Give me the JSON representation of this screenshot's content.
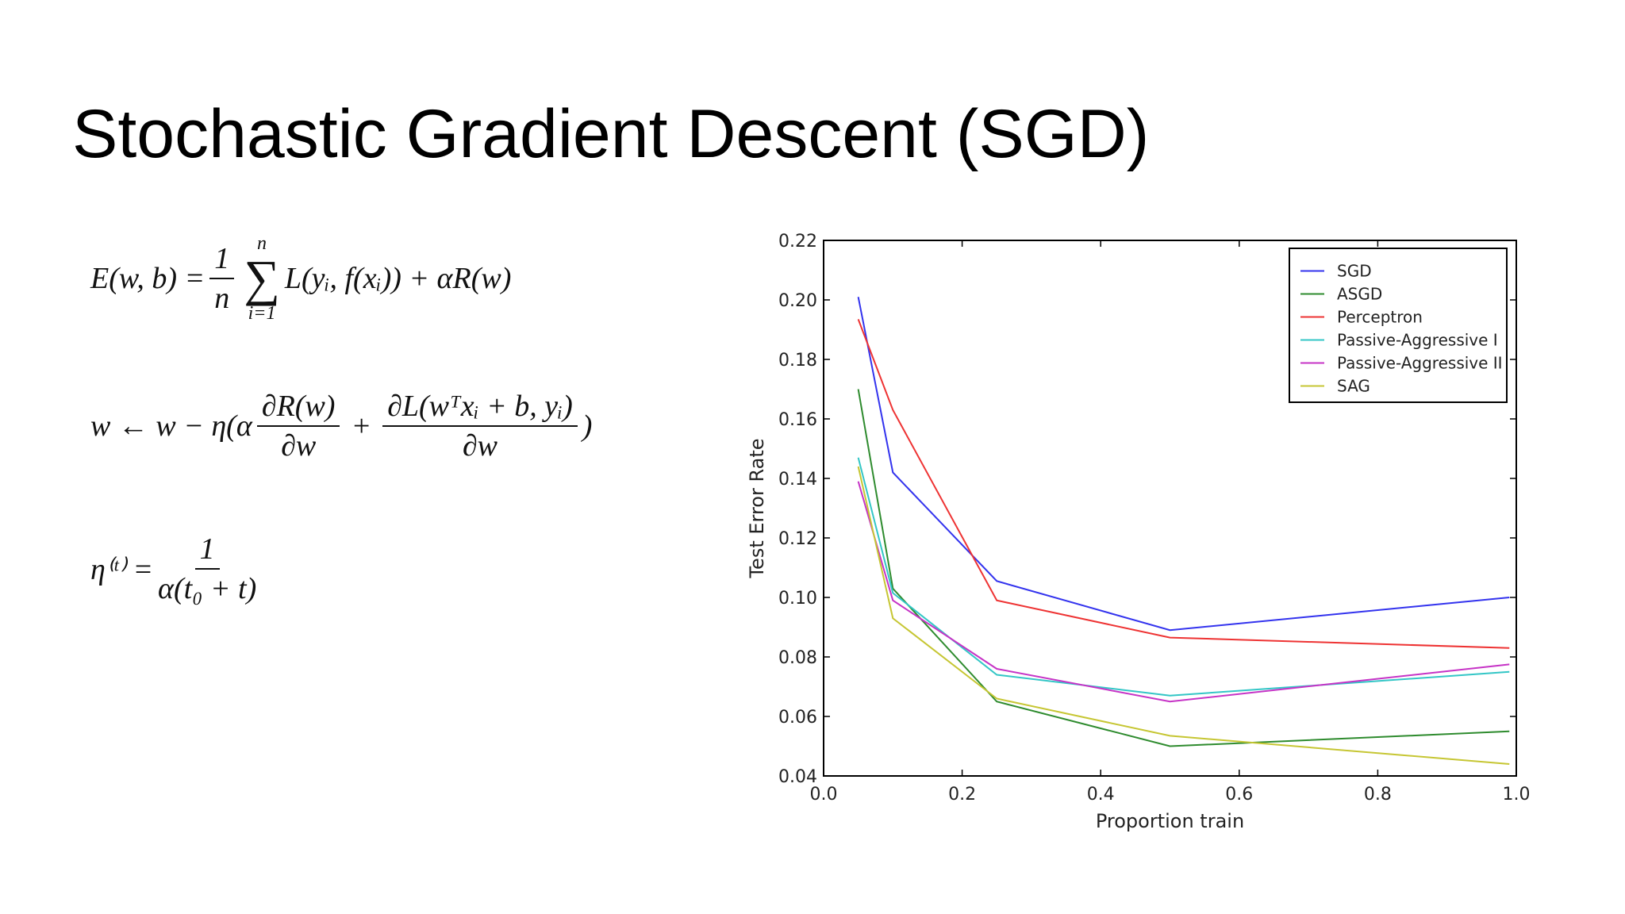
{
  "header": {
    "title": "Stochastic Gradient Descent (SGD)"
  },
  "equations": [
    {
      "lhs": "E(w, b) =",
      "frac_num": "1",
      "frac_den": "n",
      "sum_upper": "n",
      "sum_symbol": "∑",
      "sum_lower": "i=1",
      "rhs": "L(yᵢ, f(xᵢ)) + αR(w)"
    },
    {
      "lhs": "w ← w − η(α",
      "frac1_num": "∂R(w)",
      "frac1_den": "∂w",
      "plus": "+",
      "frac2_num": "∂L(wᵀxᵢ + b, yᵢ)",
      "frac2_den": "∂w",
      "rhs": ")"
    },
    {
      "lhs": "η⁽ᵗ⁾ =",
      "frac_num": "1",
      "frac_den": "α(t₀ + t)"
    }
  ],
  "chart_data": {
    "type": "line",
    "x_label": "Proportion train",
    "y_label": "Test Error Rate",
    "x": [
      0.05,
      0.1,
      0.25,
      0.5,
      0.99
    ],
    "series": [
      {
        "name": "SGD",
        "color": "#3333ee",
        "values": [
          0.201,
          0.142,
          0.1055,
          0.089,
          0.1
        ]
      },
      {
        "name": "ASGD",
        "color": "#2e8b2e",
        "values": [
          0.17,
          0.103,
          0.065,
          0.05,
          0.055
        ]
      },
      {
        "name": "Perceptron",
        "color": "#ee3333",
        "values": [
          0.1935,
          0.163,
          0.099,
          0.0865,
          0.083
        ]
      },
      {
        "name": "Passive-Aggressive I",
        "color": "#33c6c6",
        "values": [
          0.147,
          0.1015,
          0.074,
          0.067,
          0.075
        ]
      },
      {
        "name": "Passive-Aggressive II",
        "color": "#c633c6",
        "values": [
          0.139,
          0.099,
          0.076,
          0.065,
          0.0775
        ]
      },
      {
        "name": "SAG",
        "color": "#c6c633",
        "values": [
          0.144,
          0.093,
          0.066,
          0.0535,
          0.044
        ]
      }
    ],
    "xlim": [
      0,
      1
    ],
    "ylim": [
      0.04,
      0.22
    ],
    "xticks": [
      {
        "value": 0,
        "label": "0.0"
      },
      0.2,
      0.4,
      0.6,
      0.8,
      {
        "value": 1,
        "label": "1.0"
      }
    ],
    "yticks": [
      0.04,
      0.06,
      0.08,
      {
        "value": 0.1,
        "label": "0.10"
      },
      0.12,
      0.14,
      0.16,
      0.18,
      {
        "value": 0.2,
        "label": "0.20"
      },
      0.22
    ],
    "legend": "upper right",
    "grid": false
  }
}
